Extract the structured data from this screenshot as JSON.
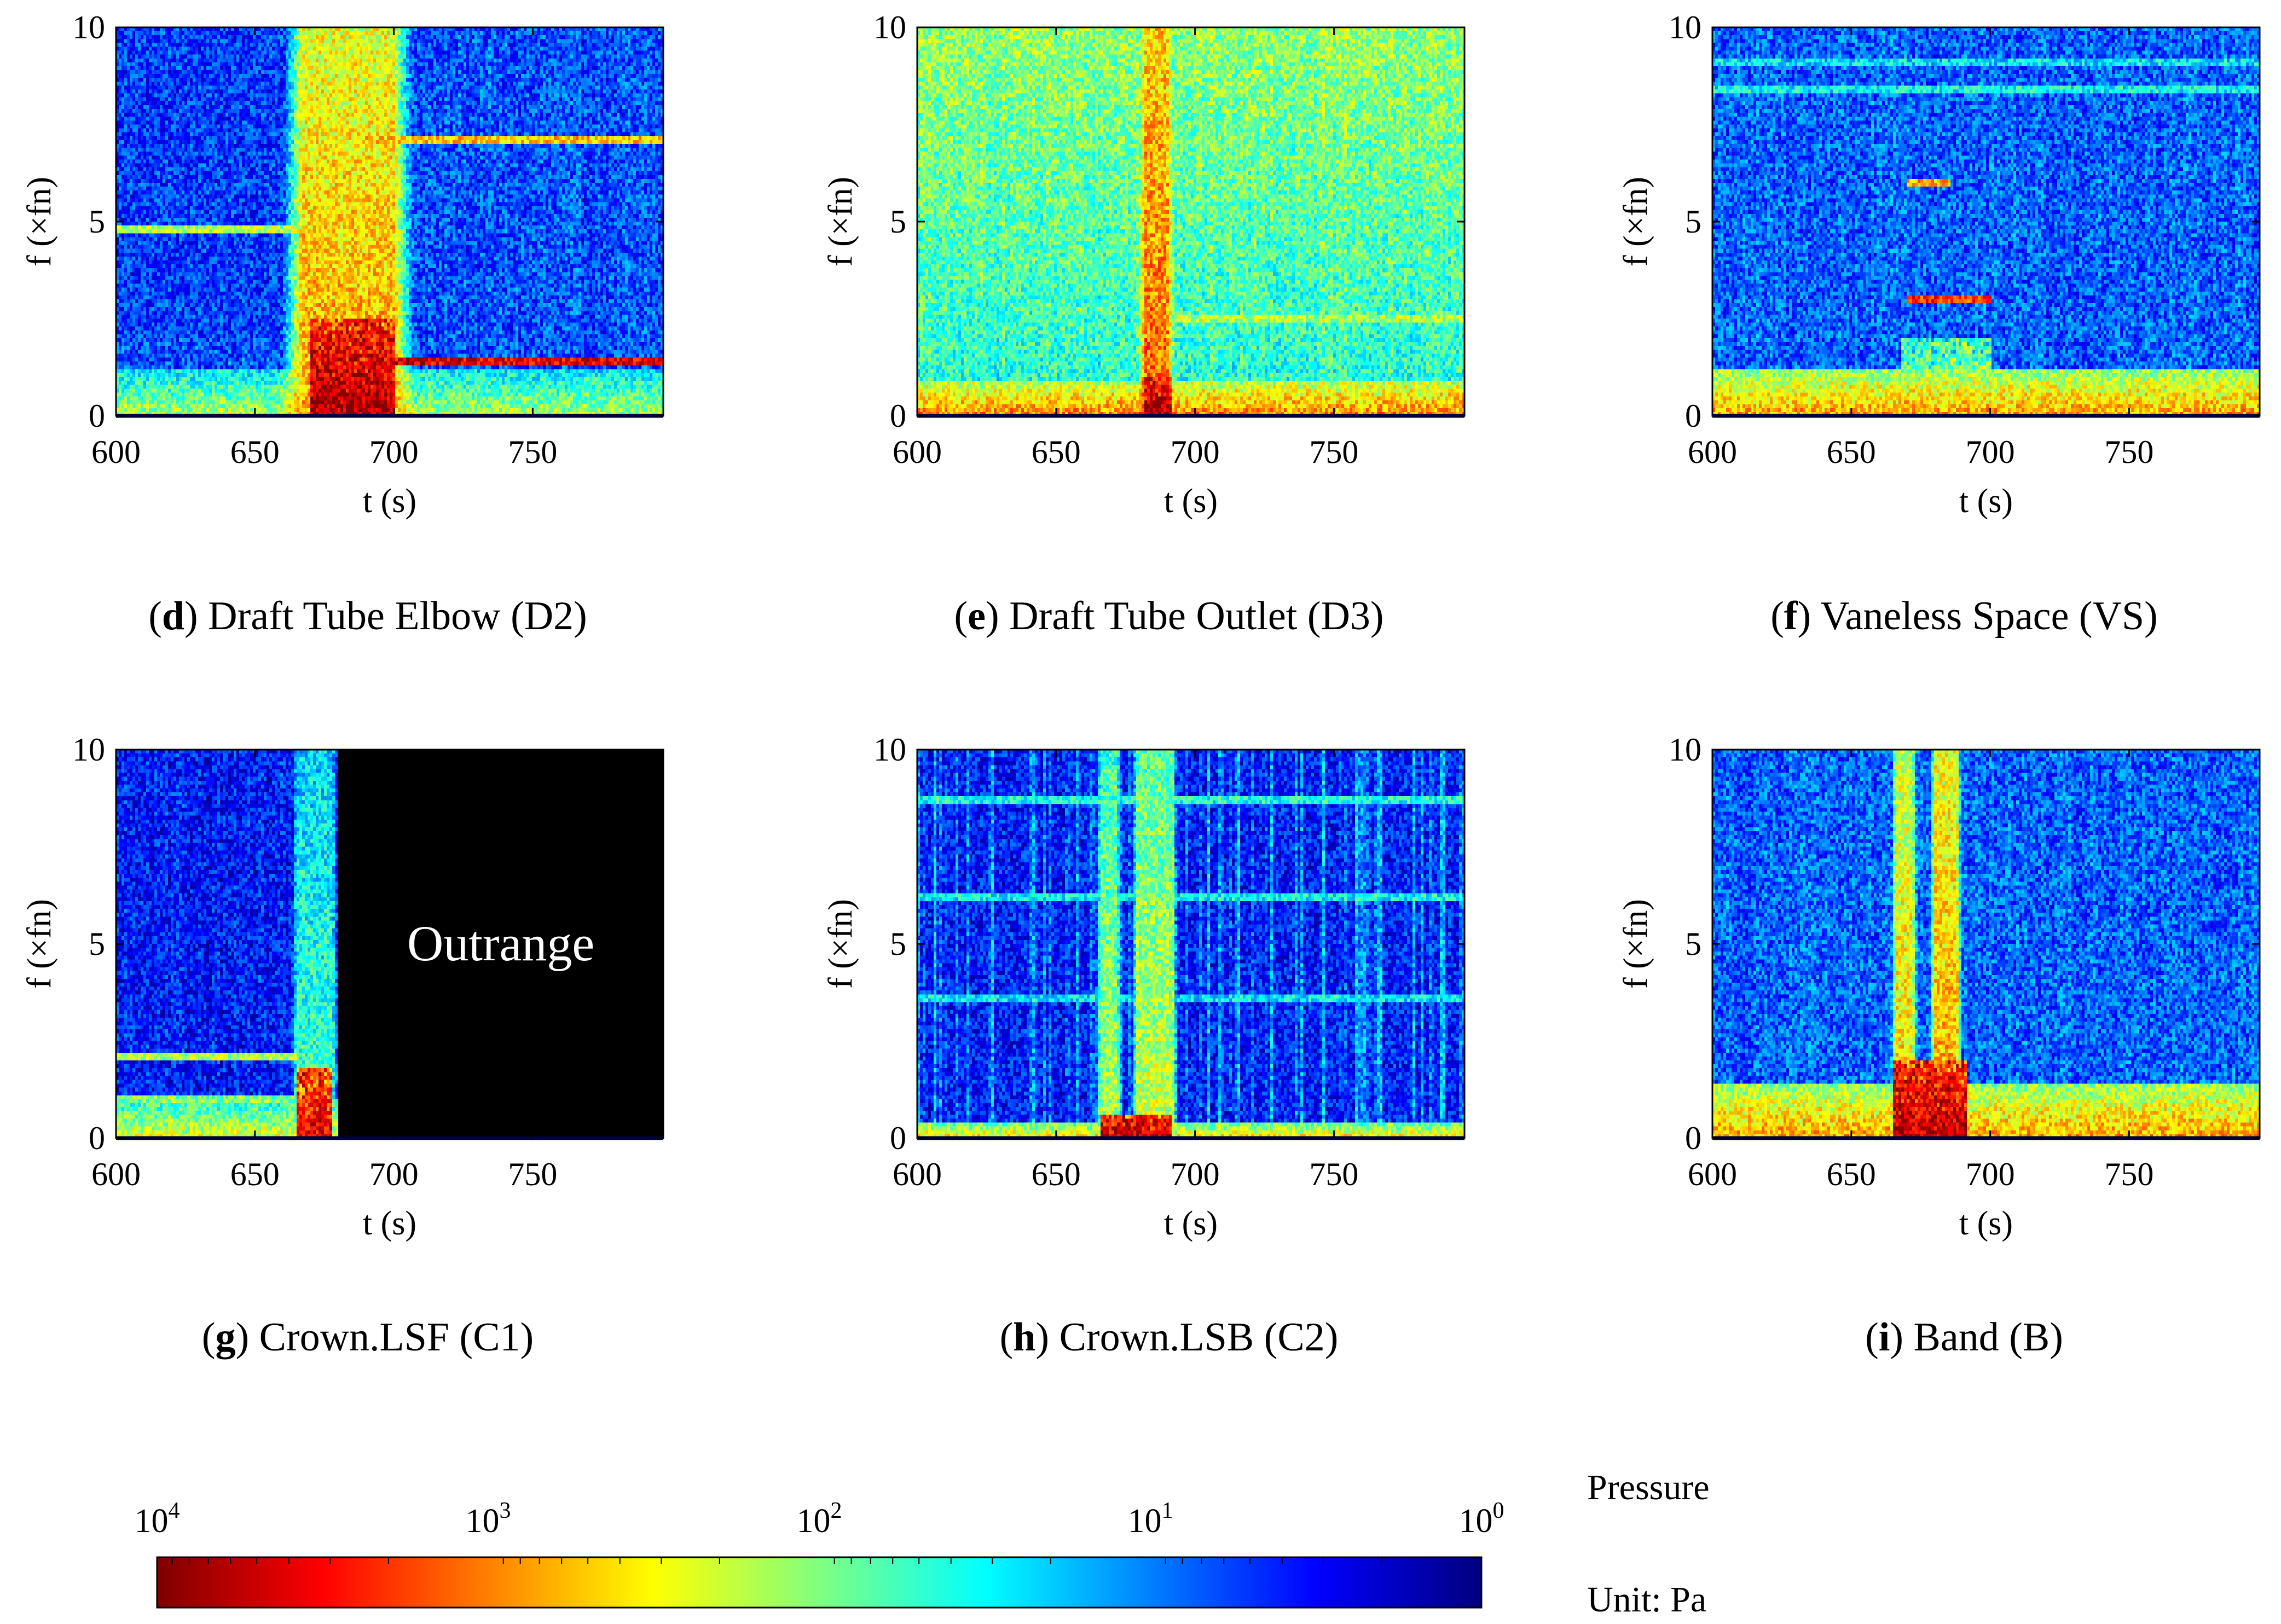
{
  "figure": {
    "colorbar": {
      "ticks": [
        {
          "base": "10",
          "exp": "4"
        },
        {
          "base": "10",
          "exp": "3"
        },
        {
          "base": "10",
          "exp": "2"
        },
        {
          "base": "10",
          "exp": "1"
        },
        {
          "base": "10",
          "exp": "0"
        }
      ],
      "title": "Pressure",
      "unit": "Unit: Pa",
      "colors": [
        "#7f0000",
        "#ff0000",
        "#ff8000",
        "#ffff00",
        "#80ff80",
        "#00ffff",
        "#0080ff",
        "#0000ff",
        "#00007f"
      ]
    }
  },
  "chart_data": [
    {
      "type": "heatmap",
      "panel": "d",
      "caption_rest": ") Draft Tube Elbow (D2)",
      "xlabel": "t (s)",
      "ylabel": "f (×fn)",
      "xlim": [
        600,
        797
      ],
      "ylim": [
        0,
        10
      ],
      "xticks": [
        600,
        650,
        700,
        750
      ],
      "yticks": [
        0,
        5,
        10
      ],
      "base_level": 0.2,
      "low_freq_level": 0.55,
      "low_freq_band": 1.2,
      "vertical_bands": [
        {
          "t0": 667,
          "t1": 700,
          "level": 0.72,
          "ramp": 8
        }
      ],
      "hot_spots": [
        {
          "t0": 670,
          "t1": 700,
          "f0": 0,
          "f1": 2.5,
          "level": 0.97
        }
      ],
      "horizontal_lines": [
        {
          "f": 1.4,
          "t0": 690,
          "t1": 797,
          "level": 0.9
        },
        {
          "f": 7.1,
          "t0": 690,
          "t1": 797,
          "level": 0.68
        },
        {
          "f": 4.8,
          "t0": 600,
          "t1": 667,
          "level": 0.55
        }
      ],
      "dark_region": {
        "t0": 600,
        "t1": 667,
        "f0": 2,
        "f1": 10,
        "level": 0.08
      }
    },
    {
      "type": "heatmap",
      "panel": "e",
      "caption_rest": ") Draft Tube Outlet (D3)",
      "xlabel": "t (s)",
      "ylabel": "f (×fn)",
      "xlim": [
        600,
        797
      ],
      "ylim": [
        0,
        10
      ],
      "xticks": [
        600,
        650,
        700,
        750
      ],
      "yticks": [
        0,
        5,
        10
      ],
      "base_level": 0.4,
      "low_freq_level": 0.75,
      "low_freq_band": 0.9,
      "vertical_bands": [
        {
          "t0": 682,
          "t1": 690,
          "level": 0.78,
          "ramp": 3
        }
      ],
      "hot_spots": [
        {
          "t0": 682,
          "t1": 692,
          "f0": 0,
          "f1": 1.0,
          "level": 0.97
        }
      ],
      "horizontal_lines": [
        {
          "f": 2.5,
          "t0": 690,
          "t1": 797,
          "level": 0.55
        }
      ],
      "top_gradient": 0.12
    },
    {
      "type": "heatmap",
      "panel": "f",
      "caption_rest": ") Vaneless Space (VS)",
      "xlabel": "t (s)",
      "ylabel": "f (×fn)",
      "xlim": [
        600,
        797
      ],
      "ylim": [
        0,
        10
      ],
      "xticks": [
        600,
        650,
        700,
        750
      ],
      "yticks": [
        0,
        5,
        10
      ],
      "base_level": 0.22,
      "low_freq_level": 0.72,
      "low_freq_band": 1.2,
      "vertical_bands": [],
      "hot_spots": [
        {
          "t0": 668,
          "t1": 700,
          "f0": 0,
          "f1": 2.0,
          "level": 0.55
        }
      ],
      "horizontal_lines": [
        {
          "f": 3.0,
          "t0": 670,
          "t1": 700,
          "level": 0.82
        },
        {
          "f": 6.0,
          "t0": 670,
          "t1": 686,
          "level": 0.7
        },
        {
          "f": 8.4,
          "t0": 600,
          "t1": 797,
          "level": 0.38
        },
        {
          "f": 9.1,
          "t0": 600,
          "t1": 797,
          "level": 0.35
        }
      ]
    },
    {
      "type": "heatmap",
      "panel": "g",
      "caption_rest": ") Crown.LSF (C1)",
      "xlabel": "t (s)",
      "ylabel": "f (×fn)",
      "xlim": [
        600,
        797
      ],
      "ylim": [
        0,
        10
      ],
      "xticks": [
        600,
        650,
        700,
        750
      ],
      "yticks": [
        0,
        5,
        10
      ],
      "base_level": 0.14,
      "low_freq_level": 0.6,
      "low_freq_band": 1.0,
      "vertical_bands": [
        {
          "t0": 665,
          "t1": 678,
          "level": 0.45,
          "ramp": 2
        }
      ],
      "hot_spots": [
        {
          "t0": 665,
          "t1": 678,
          "f0": 0,
          "f1": 1.8,
          "level": 0.9
        }
      ],
      "horizontal_lines": [
        {
          "f": 2.1,
          "t0": 600,
          "t1": 665,
          "level": 0.55
        },
        {
          "f": 1.0,
          "t0": 600,
          "t1": 665,
          "level": 0.5
        }
      ],
      "outrange": {
        "t0": 680,
        "t1": 797,
        "label": "Outrange"
      }
    },
    {
      "type": "heatmap",
      "panel": "h",
      "caption_rest": ") Crown.LSB (C2)",
      "xlabel": "t (s)",
      "ylabel": "f (×fn)",
      "xlim": [
        600,
        797
      ],
      "ylim": [
        0,
        10
      ],
      "xticks": [
        600,
        650,
        700,
        750
      ],
      "yticks": [
        0,
        5,
        10
      ],
      "base_level": 0.14,
      "low_freq_level": 0.65,
      "low_freq_band": 0.4,
      "vertical_bands": [
        {
          "t0": 666,
          "t1": 672,
          "level": 0.55,
          "ramp": 2
        },
        {
          "t0": 679,
          "t1": 692,
          "level": 0.58,
          "ramp": 2
        }
      ],
      "hot_spots": [
        {
          "t0": 666,
          "t1": 692,
          "f0": 0,
          "f1": 0.6,
          "level": 0.95
        }
      ],
      "horizontal_lines": [
        {
          "f": 8.7,
          "t0": 600,
          "t1": 797,
          "level": 0.4
        },
        {
          "f": 6.2,
          "t0": 600,
          "t1": 797,
          "level": 0.38
        },
        {
          "f": 3.6,
          "t0": 600,
          "t1": 797,
          "level": 0.36
        }
      ],
      "stripes": true
    },
    {
      "type": "heatmap",
      "panel": "i",
      "caption_rest": ") Band (B)",
      "xlabel": "t (s)",
      "ylabel": "f (×fn)",
      "xlim": [
        600,
        797
      ],
      "ylim": [
        0,
        10
      ],
      "xticks": [
        600,
        650,
        700,
        750
      ],
      "yticks": [
        0,
        5,
        10
      ],
      "base_level": 0.22,
      "low_freq_level": 0.72,
      "low_freq_band": 1.4,
      "vertical_bands": [
        {
          "t0": 666,
          "t1": 672,
          "level": 0.68,
          "ramp": 2
        },
        {
          "t0": 680,
          "t1": 688,
          "level": 0.72,
          "ramp": 2
        }
      ],
      "hot_spots": [
        {
          "t0": 665,
          "t1": 692,
          "f0": 0,
          "f1": 2.0,
          "level": 0.95
        }
      ],
      "horizontal_lines": []
    }
  ]
}
